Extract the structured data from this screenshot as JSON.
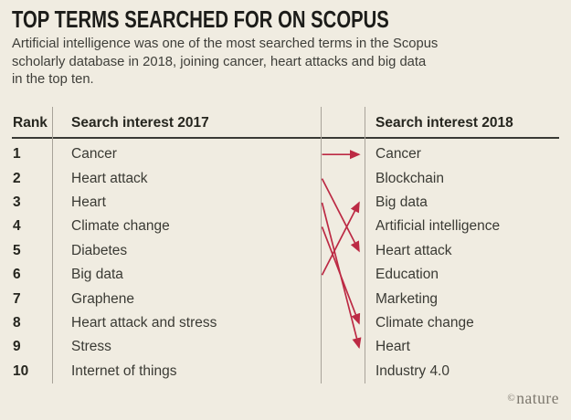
{
  "page": {
    "background_color": "#f0ece1",
    "accent_color": "#bc2a44"
  },
  "header": {
    "title": "TOP TERMS SEARCHED FOR ON SCOPUS",
    "subtitle_lines": [
      "Artificial intelligence was one of the most searched terms in the Scopus",
      "scholarly database in 2018, joining cancer, heart attacks and big data",
      "in the top ten."
    ]
  },
  "table": {
    "rank_header": "Rank",
    "col_2017_header": "Search interest 2017",
    "col_2018_header": "Search interest 2018"
  },
  "footer": {
    "credit_symbol": "©",
    "credit_name": "nature"
  },
  "chart_data": {
    "type": "table",
    "title": "TOP TERMS SEARCHED FOR ON SCOPUS",
    "subtitle": "Artificial intelligence was one of the most searched terms in the Scopus scholarly database in 2018, joining cancer, heart attacks and big data in the top ten.",
    "columns": [
      "Rank",
      "Search interest 2017",
      "Search interest 2018"
    ],
    "ranks": [
      1,
      2,
      3,
      4,
      5,
      6,
      7,
      8,
      9,
      10
    ],
    "terms_2017": [
      "Cancer",
      "Heart attack",
      "Heart",
      "Climate change",
      "Diabetes",
      "Big data",
      "Graphene",
      "Heart attack and stress",
      "Stress",
      "Internet of things"
    ],
    "terms_2018": [
      "Cancer",
      "Blockchain",
      "Big data",
      "Artificial intelligence",
      "Heart attack",
      "Education",
      "Marketing",
      "Climate change",
      "Heart",
      "Industry 4.0"
    ],
    "movements": [
      {
        "term": "Cancer",
        "from_rank_2017": 1,
        "to_rank_2018": 1
      },
      {
        "term": "Heart attack",
        "from_rank_2017": 2,
        "to_rank_2018": 5
      },
      {
        "term": "Heart",
        "from_rank_2017": 3,
        "to_rank_2018": 9
      },
      {
        "term": "Climate change",
        "from_rank_2017": 4,
        "to_rank_2018": 8
      },
      {
        "term": "Big data",
        "from_rank_2017": 6,
        "to_rank_2018": 3
      }
    ],
    "arrow_color": "#bc2a44",
    "legend_position": "none",
    "grid": false
  }
}
